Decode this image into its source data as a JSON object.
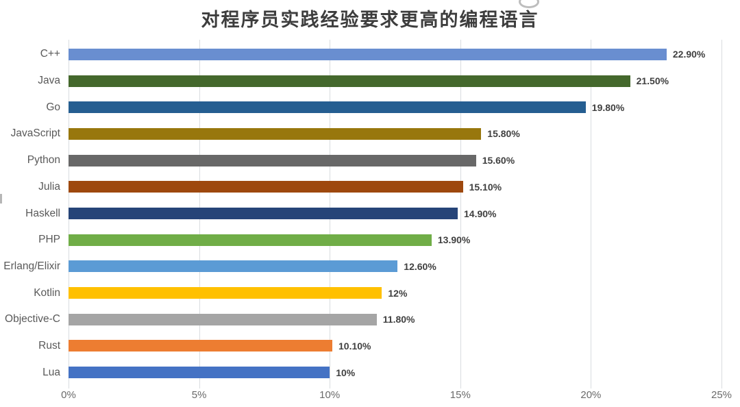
{
  "chart": {
    "title": "对程序员实践经验要求更高的编程语言"
  },
  "chart_data": {
    "type": "bar",
    "orientation": "horizontal",
    "title": "对程序员实践经验要求更高的编程语言",
    "categories": [
      "C++",
      "Java",
      "Go",
      "JavaScript",
      "Python",
      "Julia",
      "Haskell",
      "PHP",
      "Erlang/Elixir",
      "Kotlin",
      "Objective-C",
      "Rust",
      "Lua"
    ],
    "values": [
      22.9,
      21.5,
      19.8,
      15.8,
      15.6,
      15.1,
      14.9,
      13.9,
      12.6,
      12,
      11.8,
      10.1,
      10
    ],
    "value_labels": [
      "22.90%",
      "21.50%",
      "19.80%",
      "15.80%",
      "15.60%",
      "15.10%",
      "14.90%",
      "13.90%",
      "12.60%",
      "12%",
      "11.80%",
      "10.10%",
      "10%"
    ],
    "bar_colors": [
      "#698ED0",
      "#44682C",
      "#255E91",
      "#98770D",
      "#686868",
      "#9E480E",
      "#264478",
      "#70AD47",
      "#5B9BD5",
      "#FFC000",
      "#A5A5A5",
      "#ED7D31",
      "#4472C4"
    ],
    "x_ticks": [
      "0%",
      "5%",
      "10%",
      "15%",
      "20%",
      "25%"
    ],
    "x_tick_values": [
      0,
      5,
      10,
      15,
      20,
      25
    ],
    "xlim": [
      0,
      25
    ],
    "xlabel": "",
    "ylabel": "",
    "grid": true,
    "legend": false
  },
  "colors": {
    "background": "#FFFFFF",
    "gridline": "#D9DCDF",
    "category_label": "#595959",
    "value_label": "#404040",
    "tick_label": "#6A6A6A",
    "title": "#3D3D3D"
  }
}
